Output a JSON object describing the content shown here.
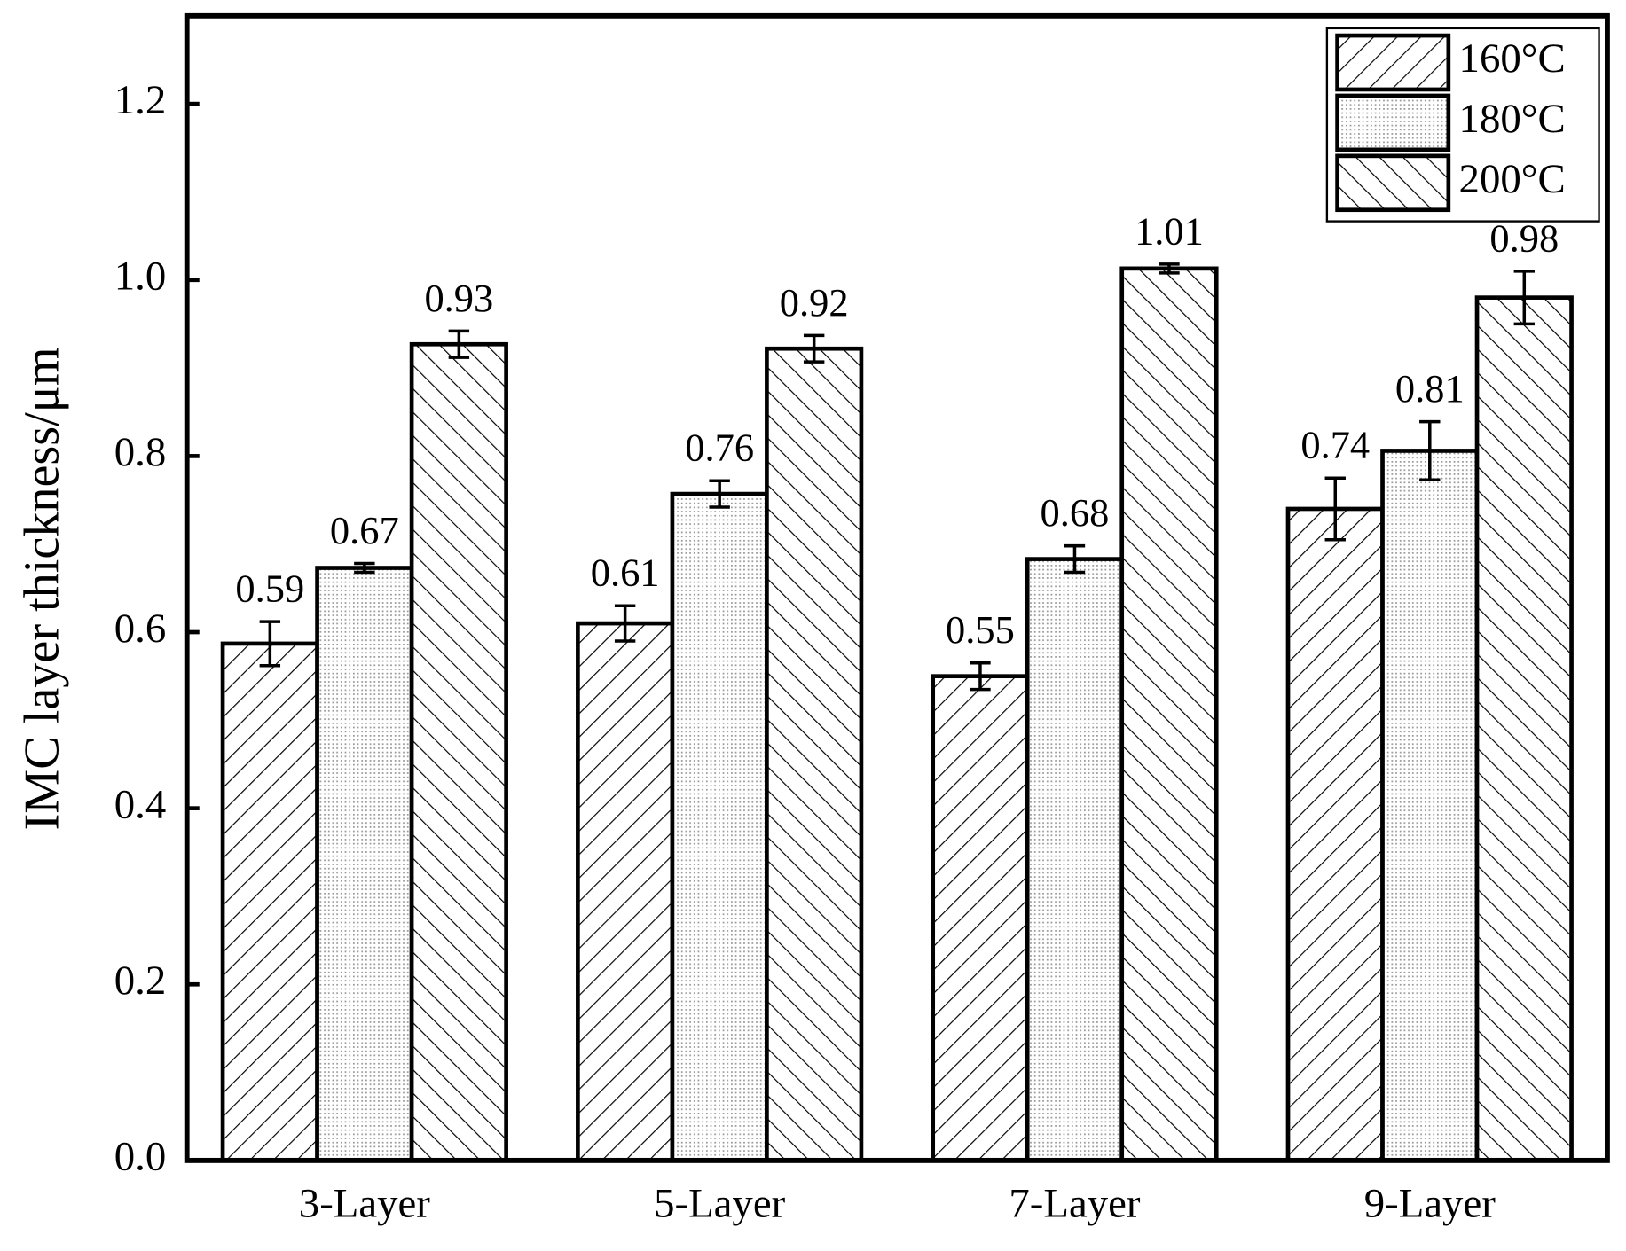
{
  "chart_data": {
    "type": "bar",
    "y_label": "IMC layer thickness/μm",
    "categories": [
      "3-Layer",
      "5-Layer",
      "7-Layer",
      "9-Layer"
    ],
    "series": [
      {
        "name": "160°C",
        "color": "#000000",
        "pattern": "forward-hatch",
        "values": [
          0.587,
          0.61,
          0.55,
          0.74
        ],
        "value_labels": [
          "0.59",
          "0.61",
          "0.55",
          "0.74"
        ],
        "errors": [
          0.025,
          0.02,
          0.015,
          0.035
        ]
      },
      {
        "name": "180°C",
        "color": "#000000",
        "pattern": "dots",
        "values": [
          0.673,
          0.757,
          0.683,
          0.806
        ],
        "value_labels": [
          "0.67",
          "0.76",
          "0.68",
          "0.81"
        ],
        "errors": [
          0.005,
          0.015,
          0.015,
          0.033
        ]
      },
      {
        "name": "200°C",
        "color": "#000000",
        "pattern": "back-hatch",
        "values": [
          0.927,
          0.922,
          1.013,
          0.98
        ],
        "value_labels": [
          "0.93",
          "0.92",
          "1.01",
          "0.98"
        ],
        "errors": [
          0.015,
          0.015,
          0.005,
          0.03
        ]
      }
    ],
    "ylim": [
      0,
      1.3
    ],
    "yticks": [
      {
        "value": 0,
        "label": "0.0"
      },
      {
        "value": 0.2,
        "label": "0.2"
      },
      {
        "value": 0.4,
        "label": "0.4"
      },
      {
        "value": 0.6,
        "label": "0.6"
      },
      {
        "value": 0.8,
        "label": "0.8"
      },
      {
        "value": 1.0,
        "label": "1.0"
      },
      {
        "value": 1.2,
        "label": "1.2"
      }
    ],
    "legend": "top-right"
  }
}
